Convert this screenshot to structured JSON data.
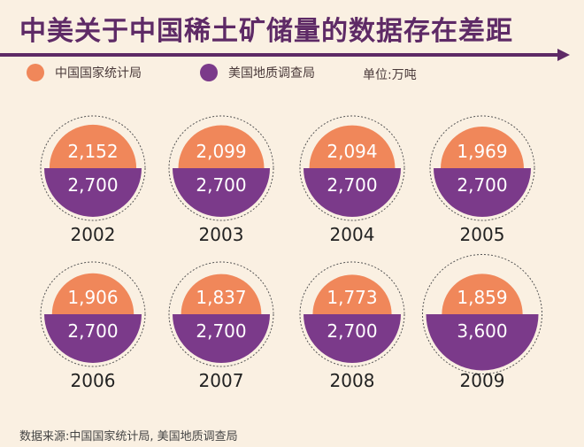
{
  "title": "中美关于中国稀土矿储量的数据存在差距",
  "legend": {
    "china_label": "中国国家统计局",
    "us_label": "美国地质调查局",
    "unit": "单位:万吨"
  },
  "source": "数据来源:中国国家统计局, 美国地质调查局",
  "colors": {
    "china": "#f0875a",
    "us": "#7b3a8a",
    "title": "#5e2a66"
  },
  "chart_data": {
    "type": "bubble-comparison",
    "title": "中美关于中国稀土矿储量的数据存在差距",
    "unit": "万吨",
    "categories": [
      "2002",
      "2003",
      "2004",
      "2005",
      "2006",
      "2007",
      "2008",
      "2009"
    ],
    "series": [
      {
        "name": "中国国家统计局",
        "values": [
          2152,
          2099,
          2094,
          1969,
          1906,
          1837,
          1773,
          1859
        ]
      },
      {
        "name": "美国地质调查局",
        "values": [
          2700,
          2700,
          2700,
          2700,
          2700,
          2700,
          2700,
          3600
        ]
      }
    ],
    "value_labels": {
      "china": [
        "2,152",
        "2,099",
        "2,094",
        "1,969",
        "1,906",
        "1,837",
        "1,773",
        "1,859"
      ],
      "us": [
        "2,700",
        "2,700",
        "2,700",
        "2,700",
        "2,700",
        "2,700",
        "2,700",
        "3,600"
      ]
    }
  }
}
